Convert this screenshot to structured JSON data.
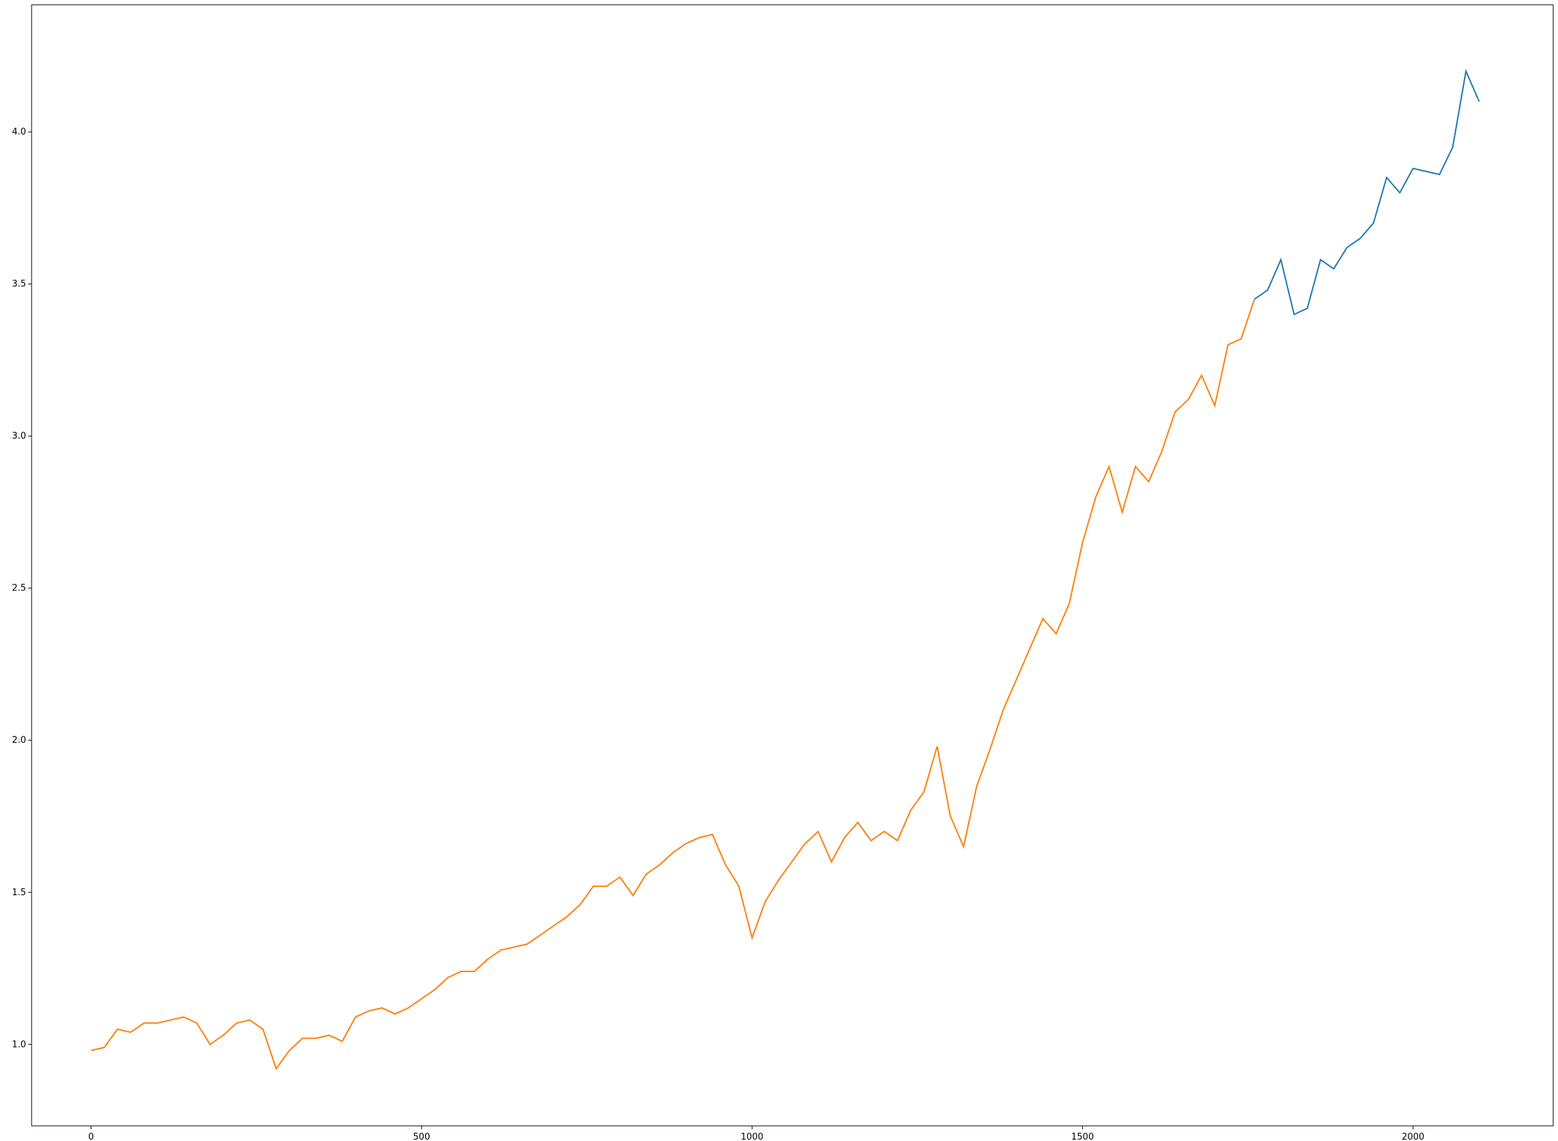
{
  "chart_data": {
    "type": "line",
    "x": [
      0,
      20,
      40,
      60,
      80,
      100,
      120,
      140,
      160,
      180,
      200,
      220,
      240,
      260,
      280,
      300,
      320,
      340,
      360,
      380,
      400,
      420,
      440,
      460,
      480,
      500,
      520,
      540,
      560,
      580,
      600,
      620,
      640,
      660,
      680,
      700,
      720,
      740,
      760,
      780,
      800,
      820,
      840,
      860,
      880,
      900,
      920,
      940,
      960,
      980,
      1000,
      1020,
      1040,
      1060,
      1080,
      1100,
      1120,
      1140,
      1160,
      1180,
      1200,
      1220,
      1240,
      1260,
      1280,
      1300,
      1320,
      1340,
      1360,
      1380,
      1400,
      1420,
      1440,
      1460,
      1480,
      1500,
      1520,
      1540,
      1560,
      1580,
      1600,
      1620,
      1640,
      1660,
      1680,
      1700,
      1720,
      1740,
      1760,
      1780,
      1800,
      1820,
      1840,
      1860,
      1880,
      1900,
      1920,
      1940,
      1960,
      1980,
      2000,
      2020,
      2040,
      2060,
      2080,
      2100
    ],
    "series": [
      {
        "color": "#1f77b4",
        "values": [
          null,
          null,
          null,
          null,
          null,
          null,
          null,
          null,
          null,
          null,
          null,
          null,
          null,
          null,
          null,
          null,
          null,
          null,
          null,
          null,
          null,
          null,
          null,
          null,
          null,
          null,
          null,
          null,
          null,
          null,
          null,
          null,
          null,
          null,
          null,
          null,
          null,
          null,
          null,
          null,
          null,
          null,
          null,
          null,
          null,
          null,
          null,
          null,
          null,
          null,
          null,
          null,
          null,
          null,
          null,
          null,
          null,
          null,
          null,
          null,
          null,
          null,
          null,
          null,
          null,
          null,
          null,
          null,
          null,
          null,
          null,
          null,
          null,
          null,
          null,
          null,
          null,
          null,
          null,
          null,
          null,
          null,
          null,
          null,
          null,
          null,
          null,
          null,
          3.45,
          3.48,
          3.58,
          3.4,
          3.42,
          3.58,
          3.55,
          3.62,
          3.65,
          3.7,
          3.85,
          3.8,
          3.88,
          3.87,
          3.86,
          3.95,
          4.2,
          4.1
        ]
      },
      {
        "color": "#ff7f0e",
        "values": [
          0.98,
          0.99,
          1.05,
          1.04,
          1.07,
          1.07,
          1.08,
          1.09,
          1.07,
          1.0,
          1.03,
          1.07,
          1.08,
          1.05,
          0.92,
          0.98,
          1.02,
          1.02,
          1.03,
          1.01,
          1.09,
          1.11,
          1.12,
          1.1,
          1.12,
          1.15,
          1.18,
          1.22,
          1.24,
          1.24,
          1.28,
          1.31,
          1.32,
          1.33,
          1.36,
          1.39,
          1.42,
          1.46,
          1.52,
          1.52,
          1.55,
          1.49,
          1.56,
          1.59,
          1.63,
          1.66,
          1.68,
          1.69,
          1.59,
          1.52,
          1.35,
          1.47,
          1.54,
          1.6,
          1.66,
          1.7,
          1.6,
          1.68,
          1.73,
          1.67,
          1.7,
          1.67,
          1.77,
          1.83,
          1.98,
          1.75,
          1.65,
          1.85,
          1.97,
          2.1,
          2.2,
          2.3,
          2.4,
          2.35,
          2.45,
          2.65,
          2.8,
          2.9,
          2.75,
          2.9,
          2.85,
          2.95,
          3.08,
          3.12,
          3.2,
          3.1,
          3.3,
          3.32,
          3.45,
          null,
          null,
          null,
          null,
          null,
          null,
          null,
          null,
          null,
          null,
          null,
          null,
          null,
          null,
          null,
          null,
          null
        ]
      }
    ],
    "xlim": [
      -90,
      2212
    ],
    "ylim": [
      0.732,
      4.418
    ],
    "xticks": [
      0,
      500,
      1000,
      1500,
      2000
    ],
    "yticks": [
      {
        "value": 1,
        "label": "1.0"
      },
      1.5,
      {
        "value": 2,
        "label": "2.0"
      },
      2.5,
      {
        "value": 3,
        "label": "3.0"
      },
      3.5,
      {
        "value": 4,
        "label": "4.0"
      }
    ]
  }
}
